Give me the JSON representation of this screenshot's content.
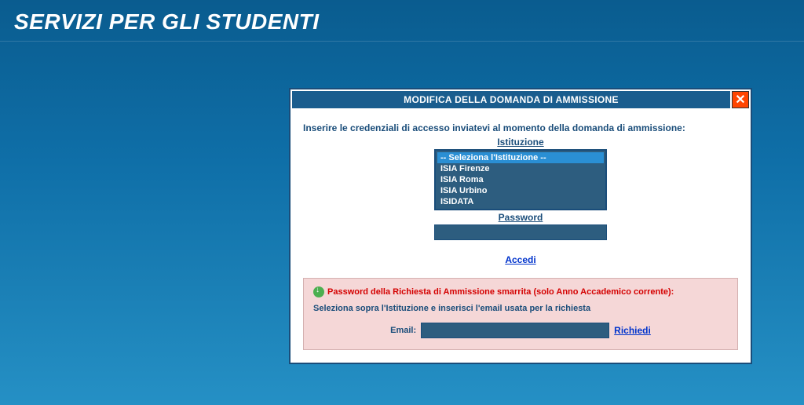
{
  "page": {
    "title": "SERVIZI PER GLI STUDENTI"
  },
  "modal": {
    "title": "MODIFICA DELLA DOMANDA DI AMMISSIONE",
    "instruction": "Inserire le credenziali di accesso inviatevi al momento della domanda di ammissione:",
    "istituzione_label": "Istituzione",
    "options": [
      "-- Seleziona l'Istituzione --",
      "ISIA Firenze",
      "ISIA Roma",
      "ISIA Urbino",
      "ISIDATA"
    ],
    "selected_index": 0,
    "password_label": "Password",
    "accedi_label": "Accedi"
  },
  "recovery": {
    "title": "Password della Richiesta di Ammissione smarrita (solo Anno Accademico corrente):",
    "subtitle": "Seleziona sopra l'Istituzione e inserisci l'email usata per la richiesta",
    "email_label": "Email:",
    "richiedi_label": "Richiedi"
  },
  "colors": {
    "header_bg": "#1a5d8e",
    "text_blue": "#1a4d7a",
    "link_blue": "#0033cc",
    "alert_red": "#d40000",
    "recovery_bg": "#f5d7d7",
    "input_bg": "#2d5d7f",
    "close_bg": "#ff4500",
    "highlight_bg": "#2a8fd4"
  }
}
